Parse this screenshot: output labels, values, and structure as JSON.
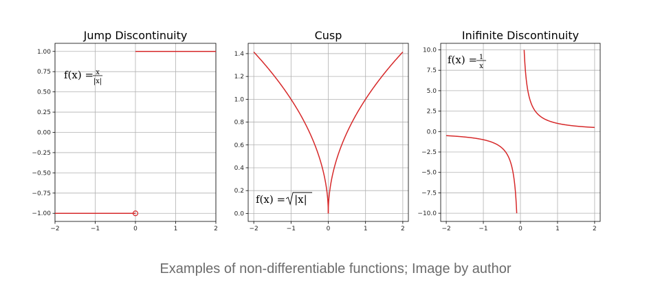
{
  "colors": {
    "curve": "#d62728"
  },
  "caption": "Examples of non-differentiable functions; Image by author",
  "chart_data": [
    {
      "type": "line",
      "title": "Jump Discontinuity",
      "formula": {
        "lhs": "f(x) = ",
        "num": "x",
        "den": "|x|"
      },
      "xlim": [
        -2,
        2
      ],
      "ylim": [
        -1.1,
        1.1
      ],
      "xticks": [
        -2,
        -1,
        0,
        1,
        2
      ],
      "xtick_labels": [
        "−2",
        "−1",
        "0",
        "1",
        "2"
      ],
      "yticks": [
        -1.0,
        -0.75,
        -0.5,
        -0.25,
        0.0,
        0.25,
        0.5,
        0.75,
        1.0
      ],
      "ytick_labels": [
        "−1.00",
        "−0.75",
        "−0.50",
        "−0.25",
        "0.00",
        "0.25",
        "0.50",
        "0.75",
        "1.00"
      ],
      "grid": true,
      "function": "sign",
      "series": [
        {
          "x": [
            -2,
            0
          ],
          "y": [
            -1,
            -1
          ]
        },
        {
          "x": [
            0,
            2
          ],
          "y": [
            1,
            1
          ]
        }
      ],
      "open_points": [
        {
          "x": 0,
          "y": -1
        }
      ]
    },
    {
      "type": "line",
      "title": "Cusp",
      "formula": {
        "lhs": "f(x) = ",
        "sqrt": "|x|"
      },
      "xlim": [
        -2.15,
        2.15
      ],
      "ylim": [
        -0.07,
        1.49
      ],
      "xticks": [
        -2,
        -1,
        0,
        1,
        2
      ],
      "xtick_labels": [
        "−2",
        "−1",
        "0",
        "1",
        "2"
      ],
      "yticks": [
        0.0,
        0.2,
        0.4,
        0.6,
        0.8,
        1.0,
        1.2,
        1.4
      ],
      "ytick_labels": [
        "0.0",
        "0.2",
        "0.4",
        "0.6",
        "0.8",
        "1.0",
        "1.2",
        "1.4"
      ],
      "grid": true,
      "function": "sqrt_abs",
      "series": [
        {
          "x": [
            -2,
            -1.5,
            -1,
            -0.5,
            -0.1,
            0
          ],
          "y": [
            1.414,
            1.225,
            1.0,
            0.707,
            0.316,
            0.0
          ]
        },
        {
          "x": [
            0,
            0.1,
            0.5,
            1,
            1.5,
            2
          ],
          "y": [
            0.0,
            0.316,
            0.707,
            1.0,
            1.225,
            1.414
          ]
        }
      ]
    },
    {
      "type": "line",
      "title": "Inifinite Discontinuity",
      "formula": {
        "lhs": "f(x) = ",
        "num": "1",
        "den": "x"
      },
      "xlim": [
        -2.15,
        2.15
      ],
      "ylim": [
        -11.0,
        10.8
      ],
      "xticks": [
        -2,
        -1,
        0,
        1,
        2
      ],
      "xtick_labels": [
        "−2",
        "−1",
        "0",
        "1",
        "2"
      ],
      "yticks": [
        -10.0,
        -7.5,
        -5.0,
        -2.5,
        0.0,
        2.5,
        5.0,
        7.5,
        10.0
      ],
      "ytick_labels": [
        "−10.0",
        "−7.5",
        "−5.0",
        "−2.5",
        "0.0",
        "2.5",
        "5.0",
        "7.5",
        "10.0"
      ],
      "grid": true,
      "function": "reciprocal",
      "series": [
        {
          "x": [
            -2,
            -1,
            -0.5,
            -0.25,
            -0.1
          ],
          "y": [
            -0.5,
            -1,
            -2,
            -4,
            -10
          ]
        },
        {
          "x": [
            0.1,
            0.25,
            0.5,
            1,
            2
          ],
          "y": [
            10,
            4,
            2,
            1,
            0.5
          ]
        }
      ]
    }
  ]
}
